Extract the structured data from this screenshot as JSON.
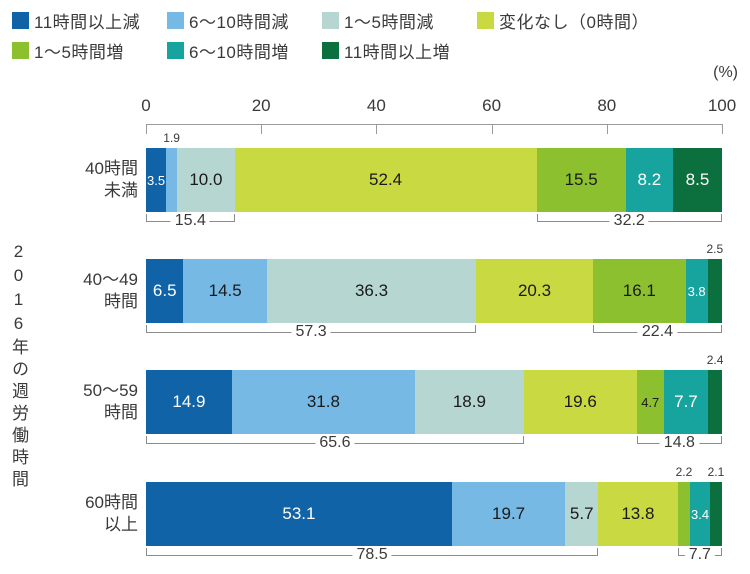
{
  "chart_data": {
    "type": "bar",
    "orientation": "horizontal-stacked",
    "xlabel": "(%)",
    "ylabel": "2016年の週労働時間",
    "xlim": [
      0,
      100
    ],
    "x_ticks": [
      0,
      20,
      40,
      60,
      80,
      100
    ],
    "grid": false,
    "legend_position": "top",
    "series_names": [
      "11時間以上減",
      "6〜10時間減",
      "1〜5時間減",
      "変化なし（0時間）",
      "1〜5時間増",
      "6〜10時間増",
      "11時間以上増"
    ],
    "series_colors": [
      "#1063a7",
      "#76b9e5",
      "#b6d7d1",
      "#c9d941",
      "#8cc02f",
      "#17a49e",
      "#0b6f3e"
    ],
    "white_text_series": [
      0,
      5,
      6
    ],
    "categories": [
      "40時間未満",
      "40〜49時間",
      "50〜59時間",
      "60時間以上"
    ],
    "rows": [
      {
        "category": "40時間未満",
        "label_lines": [
          "40時間",
          "未満"
        ],
        "values": [
          3.5,
          1.9,
          10.0,
          52.4,
          15.5,
          8.2,
          8.5
        ],
        "value_labels": [
          "3.5",
          "1.9",
          "10.0",
          "52.4",
          "15.5",
          "8.2",
          "8.5"
        ],
        "label_positions": [
          "inside",
          "above",
          "inside",
          "inside",
          "inside",
          "inside",
          "inside"
        ],
        "brackets": [
          {
            "label": "15.4",
            "span": [
              0,
              2
            ]
          },
          {
            "label": "32.2",
            "span": [
              4,
              6
            ]
          }
        ]
      },
      {
        "category": "40〜49時間",
        "label_lines": [
          "40〜49",
          "時間"
        ],
        "values": [
          6.5,
          14.5,
          36.3,
          20.3,
          16.1,
          3.8,
          2.5
        ],
        "value_labels": [
          "6.5",
          "14.5",
          "36.3",
          "20.3",
          "16.1",
          "3.8",
          "2.5"
        ],
        "label_positions": [
          "inside",
          "inside",
          "inside",
          "inside",
          "inside",
          "inside",
          "above"
        ],
        "brackets": [
          {
            "label": "57.3",
            "span": [
              0,
              2
            ]
          },
          {
            "label": "22.4",
            "span": [
              4,
              6
            ]
          }
        ]
      },
      {
        "category": "50〜59時間",
        "label_lines": [
          "50〜59",
          "時間"
        ],
        "values": [
          14.9,
          31.8,
          18.9,
          19.6,
          4.7,
          7.7,
          2.4
        ],
        "value_labels": [
          "14.9",
          "31.8",
          "18.9",
          "19.6",
          "4.7",
          "7.7",
          "2.4"
        ],
        "label_positions": [
          "inside",
          "inside",
          "inside",
          "inside",
          "inside",
          "inside",
          "above"
        ],
        "brackets": [
          {
            "label": "65.6",
            "span": [
              0,
              2
            ]
          },
          {
            "label": "14.8",
            "span": [
              4,
              6
            ]
          }
        ]
      },
      {
        "category": "60時間以上",
        "label_lines": [
          "60時間",
          "以上"
        ],
        "values": [
          53.1,
          19.7,
          5.7,
          13.8,
          2.2,
          3.4,
          2.1
        ],
        "value_labels": [
          "53.1",
          "19.7",
          "5.7",
          "13.8",
          "2.2",
          "3.4",
          "2.1"
        ],
        "label_positions": [
          "inside",
          "inside",
          "inside",
          "inside",
          "above",
          "inside",
          "above"
        ],
        "brackets": [
          {
            "label": "78.5",
            "span": [
              0,
              2
            ]
          },
          {
            "label": "7.7",
            "span": [
              4,
              6
            ]
          }
        ]
      }
    ]
  },
  "colors": {
    "axis": "#9a9a9a",
    "bracket": "#8c8c8c",
    "text": "#3a3a3a",
    "label_dark": "#1a1a1a",
    "label_light": "#ffffff"
  }
}
